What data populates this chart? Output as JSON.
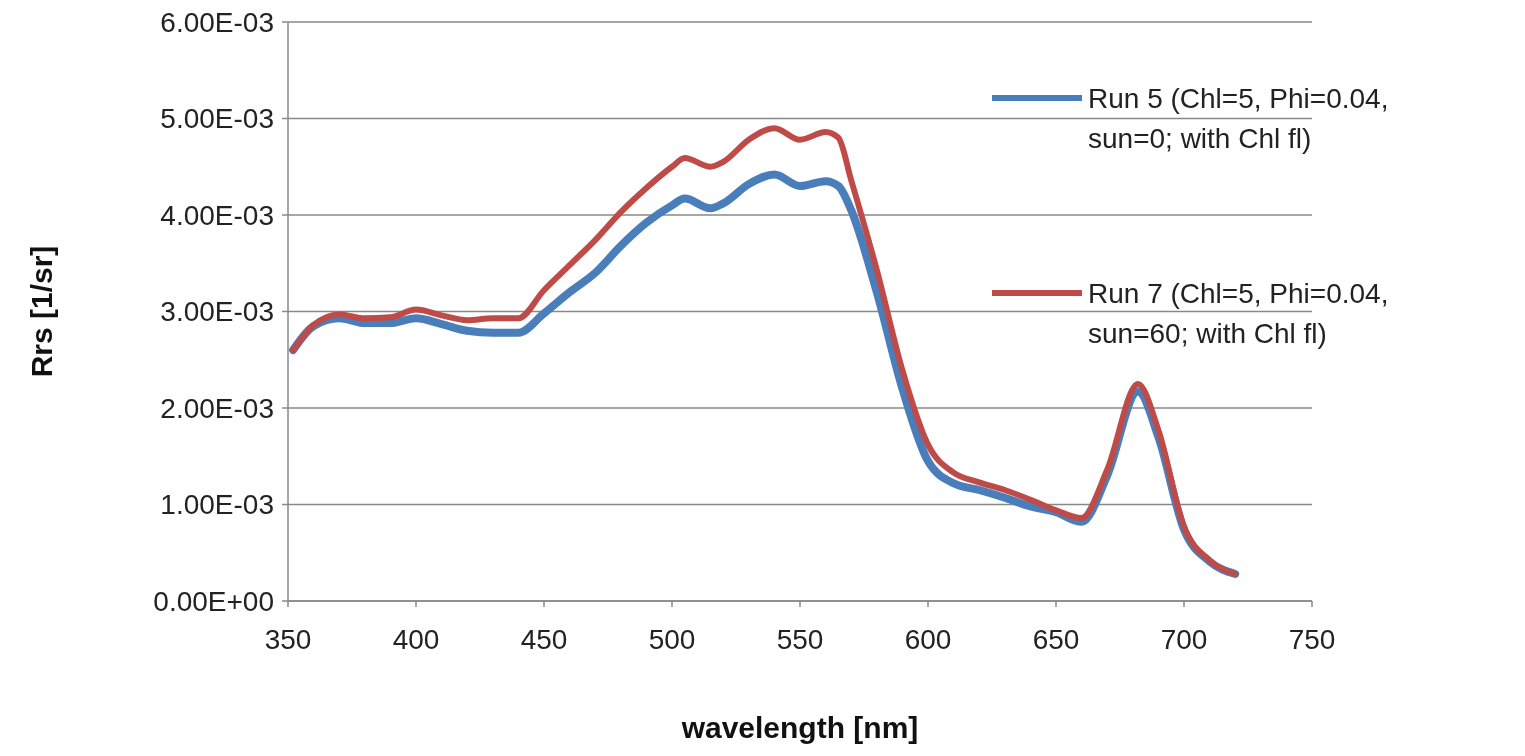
{
  "chart_data": {
    "type": "line",
    "xlabel": "wavelength [nm]",
    "ylabel": "Rrs [1/sr]",
    "xlim": [
      350,
      750
    ],
    "xticks": [
      350,
      400,
      450,
      500,
      550,
      600,
      650,
      700,
      750
    ],
    "ylim": [
      0,
      0.006
    ],
    "yticks": [
      {
        "value": 0,
        "label": "0.00E+00"
      },
      {
        "value": 0.001,
        "label": "1.00E-03"
      },
      {
        "value": 0.002,
        "label": "2.00E-03"
      },
      {
        "value": 0.003,
        "label": "3.00E-03"
      },
      {
        "value": 0.004,
        "label": "4.00E-03"
      },
      {
        "value": 0.005,
        "label": "5.00E-03"
      },
      {
        "value": 0.006,
        "label": "6.00E-03"
      }
    ],
    "grid": "y",
    "legend": "right",
    "marker": "none",
    "line_style": "solid",
    "series": [
      {
        "name": "Run 5 (Chl=5, Phi=0.04, sun=0; with Chl fl)",
        "color": "#4a7ebb",
        "x": [
          352,
          360,
          370,
          380,
          390,
          400,
          410,
          420,
          430,
          440,
          450,
          460,
          470,
          480,
          490,
          500,
          505,
          515,
          520,
          530,
          540,
          550,
          560,
          565,
          570,
          580,
          590,
          600,
          610,
          620,
          630,
          640,
          650,
          660,
          670,
          682,
          690,
          700,
          710,
          720
        ],
        "values": [
          0.0026,
          0.00285,
          0.00293,
          0.00288,
          0.00288,
          0.00293,
          0.00287,
          0.0028,
          0.00278,
          0.00278,
          0.00298,
          0.0032,
          0.0034,
          0.00368,
          0.00392,
          0.0041,
          0.00417,
          0.00407,
          0.00412,
          0.00432,
          0.00442,
          0.0043,
          0.00435,
          0.0043,
          0.00405,
          0.0032,
          0.0022,
          0.00145,
          0.00122,
          0.00115,
          0.00107,
          0.00098,
          0.00092,
          0.00082,
          0.0013,
          0.00217,
          0.0017,
          0.00074,
          0.00041,
          0.00028
        ]
      },
      {
        "name": "Run 7 (Chl=5, Phi=0.04, sun=60; with Chl fl)",
        "color": "#be4b48",
        "x": [
          352,
          360,
          370,
          380,
          390,
          400,
          410,
          420,
          430,
          440,
          450,
          460,
          470,
          480,
          490,
          500,
          505,
          515,
          520,
          530,
          540,
          550,
          560,
          565,
          570,
          580,
          590,
          600,
          610,
          620,
          630,
          640,
          650,
          660,
          670,
          682,
          690,
          700,
          710,
          720
        ],
        "values": [
          0.0026,
          0.00286,
          0.00297,
          0.00293,
          0.00294,
          0.00302,
          0.00296,
          0.00291,
          0.00293,
          0.00293,
          0.00322,
          0.00348,
          0.00374,
          0.00403,
          0.00428,
          0.0045,
          0.00459,
          0.0045,
          0.00455,
          0.00478,
          0.0049,
          0.00478,
          0.00486,
          0.0048,
          0.00436,
          0.00343,
          0.00239,
          0.00162,
          0.00133,
          0.00123,
          0.00115,
          0.00105,
          0.00094,
          0.00086,
          0.00136,
          0.00225,
          0.00177,
          0.00077,
          0.00042,
          0.00028
        ]
      }
    ]
  }
}
